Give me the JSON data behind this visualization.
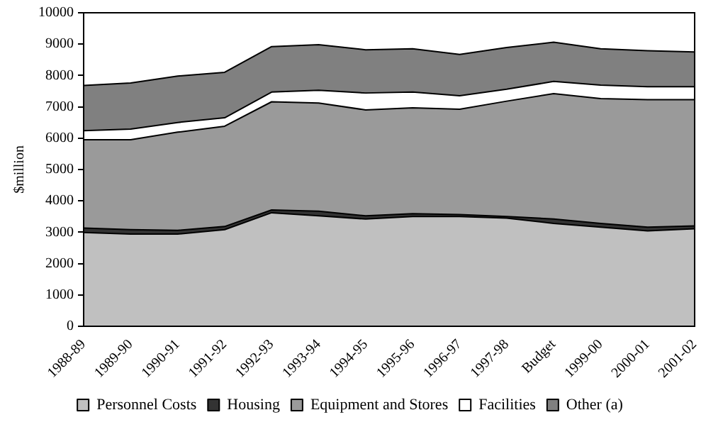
{
  "chart_data": {
    "type": "area",
    "stacked": true,
    "ylabel": "$million",
    "categories": [
      "1988-89",
      "1989-90",
      "1990-91",
      "1991-92",
      "1992-93",
      "1993-94",
      "1994-95",
      "1995-96",
      "1996-97",
      "1997-98",
      "Budget",
      "1999-00",
      "2000-01",
      "2001-02"
    ],
    "series": [
      {
        "name": "Personnel Costs",
        "color": "#c0c0c0",
        "values": [
          2990,
          2940,
          2940,
          3080,
          3620,
          3520,
          3420,
          3500,
          3500,
          3450,
          3280,
          3160,
          3040,
          3110
        ]
      },
      {
        "name": "Housing",
        "color": "#333333",
        "values": [
          140,
          140,
          120,
          100,
          90,
          150,
          100,
          90,
          60,
          50,
          140,
          120,
          120,
          90
        ]
      },
      {
        "name": "Equipment and Stores",
        "color": "#9a9a9a",
        "values": [
          2820,
          2870,
          3130,
          3200,
          3450,
          3450,
          3380,
          3380,
          3360,
          3680,
          4000,
          3980,
          4070,
          4030
        ]
      },
      {
        "name": "Facilities",
        "color": "#ffffff",
        "values": [
          290,
          340,
          310,
          270,
          310,
          410,
          540,
          500,
          430,
          380,
          390,
          430,
          410,
          410
        ]
      },
      {
        "name": "Other (a)",
        "color": "#808080",
        "values": [
          1440,
          1470,
          1480,
          1450,
          1450,
          1450,
          1380,
          1380,
          1320,
          1330,
          1250,
          1160,
          1150,
          1110
        ]
      }
    ],
    "ylim": [
      0,
      10000
    ],
    "yticks": [
      0,
      1000,
      2000,
      3000,
      4000,
      5000,
      6000,
      7000,
      8000,
      9000,
      10000
    ],
    "grid": false,
    "legend": "bottom"
  }
}
